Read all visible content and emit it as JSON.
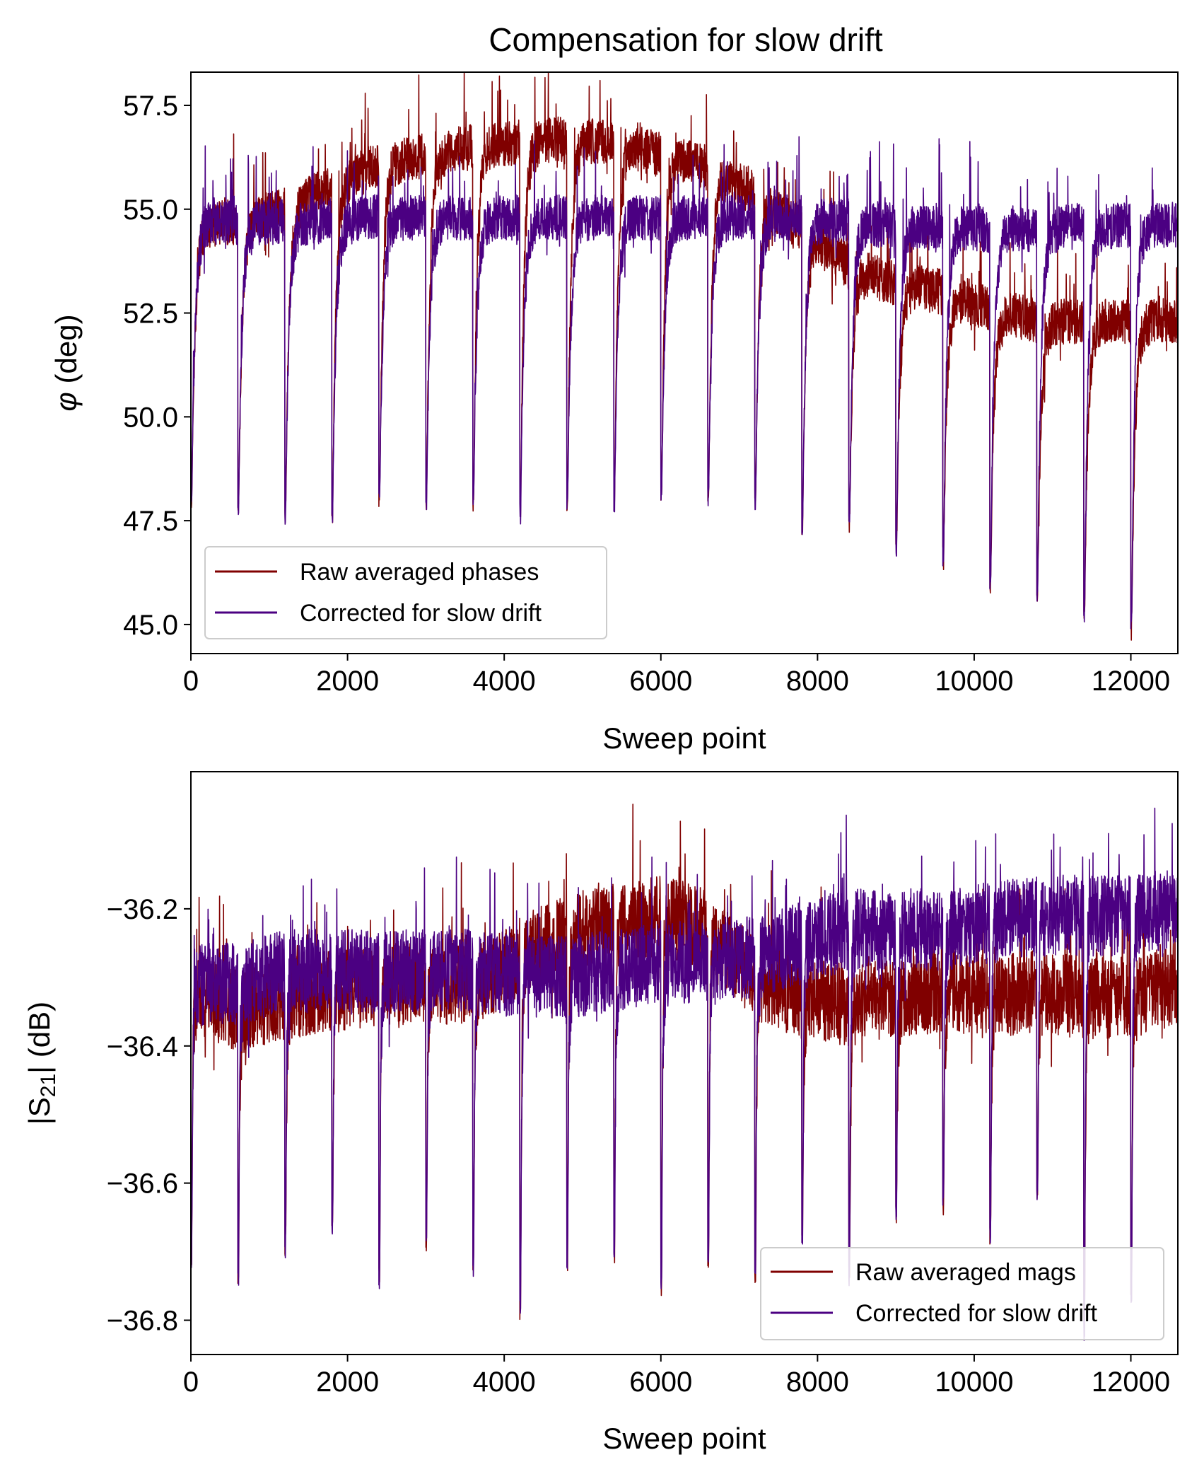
{
  "figure": {
    "title": "Compensation for slow drift"
  },
  "chart_data": [
    {
      "type": "line",
      "title": "Compensation for slow drift",
      "xlabel": "Sweep point",
      "ylabel": "φ (deg)",
      "ylabel_symbol": "φ",
      "ylabel_unit": " (deg)",
      "xlim": [
        0,
        12600
      ],
      "ylim": [
        44.3,
        58.3
      ],
      "xticks": [
        0,
        2000,
        4000,
        6000,
        8000,
        10000,
        12000
      ],
      "xtick_labels": [
        "0",
        "2000",
        "4000",
        "6000",
        "8000",
        "10000",
        "12000"
      ],
      "yticks": [
        45.0,
        47.5,
        50.0,
        52.5,
        55.0,
        57.5
      ],
      "ytick_labels": [
        "45.0",
        "47.5",
        "50.0",
        "52.5",
        "55.0",
        "57.5"
      ],
      "grid": false,
      "legend_position": "lower-left",
      "period": 600,
      "dip_depth": [
        47.8,
        47.8,
        47.7,
        47.7,
        48.0,
        48.0,
        47.9,
        47.7,
        48.0,
        48.0,
        48.1,
        48.1,
        48.0,
        47.4,
        47.5,
        46.9,
        46.6,
        45.9,
        45.8,
        45.3,
        44.9
      ],
      "series": [
        {
          "name": "Raw averaged phases",
          "color": "#800000",
          "plateau_x": [
            0,
            600,
            1200,
            1800,
            2400,
            3000,
            3600,
            4200,
            4800,
            5400,
            6000,
            6600,
            7200,
            7800,
            8400,
            9000,
            9600,
            10200,
            10800,
            11400,
            12000,
            12600
          ],
          "plateau_y": [
            54.6,
            54.7,
            55.0,
            55.5,
            56.1,
            56.3,
            56.5,
            56.6,
            56.7,
            56.6,
            56.3,
            56.0,
            55.4,
            54.5,
            53.6,
            53.2,
            53.0,
            52.6,
            52.3,
            52.3,
            52.3,
            52.3
          ]
        },
        {
          "name": "Corrected for slow drift",
          "color": "#4b0082",
          "plateau_x": [
            0,
            600,
            1200,
            1800,
            2400,
            3000,
            3600,
            4200,
            4800,
            5400,
            6000,
            6600,
            7200,
            7800,
            8400,
            9000,
            9600,
            10200,
            10800,
            11400,
            12000,
            12600
          ],
          "plateau_y": [
            54.7,
            54.7,
            54.7,
            54.7,
            54.8,
            54.8,
            54.8,
            54.8,
            54.8,
            54.8,
            54.8,
            54.8,
            54.8,
            54.8,
            54.7,
            54.6,
            54.6,
            54.5,
            54.5,
            54.6,
            54.6,
            54.6
          ]
        }
      ]
    },
    {
      "type": "line",
      "title": "",
      "xlabel": "Sweep point",
      "ylabel": "|S21| (dB)",
      "ylabel_prefix": "|S",
      "ylabel_sub": "21",
      "ylabel_suffix": "| (dB)",
      "xlim": [
        0,
        12600
      ],
      "ylim": [
        -36.85,
        -36.0
      ],
      "xticks": [
        0,
        2000,
        4000,
        6000,
        8000,
        10000,
        12000
      ],
      "xtick_labels": [
        "0",
        "2000",
        "4000",
        "6000",
        "8000",
        "10000",
        "12000"
      ],
      "yticks": [
        -36.2,
        -36.4,
        -36.6,
        -36.8
      ],
      "ytick_labels": [
        "−36.2",
        "−36.4",
        "−36.6",
        "−36.8"
      ],
      "grid": false,
      "legend_position": "lower-right",
      "period": 600,
      "dip_depth": [
        -36.71,
        -36.73,
        -36.69,
        -36.66,
        -36.74,
        -36.68,
        -36.72,
        -36.78,
        -36.71,
        -36.7,
        -36.75,
        -36.71,
        -36.73,
        -36.68,
        -36.73,
        -36.64,
        -36.63,
        -36.67,
        -36.62,
        -36.81,
        -36.76
      ],
      "series": [
        {
          "name": "Raw averaged mags",
          "color": "#800000",
          "plateau_x": [
            0,
            600,
            1200,
            1800,
            2400,
            3000,
            3600,
            4200,
            4800,
            5400,
            6000,
            6600,
            7200,
            7800,
            8400,
            9000,
            9600,
            10200,
            10800,
            11400,
            12000,
            12600
          ],
          "plateau_y": [
            -36.32,
            -36.35,
            -36.33,
            -36.32,
            -36.31,
            -36.31,
            -36.31,
            -36.27,
            -36.24,
            -36.22,
            -36.21,
            -36.23,
            -36.3,
            -36.33,
            -36.34,
            -36.33,
            -36.32,
            -36.33,
            -36.32,
            -36.33,
            -36.33,
            -36.31
          ]
        },
        {
          "name": "Corrected for slow drift",
          "color": "#4b0082",
          "plateau_x": [
            0,
            600,
            1200,
            1800,
            2400,
            3000,
            3600,
            4200,
            4800,
            5400,
            6000,
            6600,
            7200,
            7800,
            8400,
            9000,
            9600,
            10200,
            10800,
            11400,
            12000,
            12600
          ],
          "plateau_y": [
            -36.31,
            -36.31,
            -36.29,
            -36.29,
            -36.29,
            -36.29,
            -36.29,
            -36.3,
            -36.3,
            -36.29,
            -36.28,
            -36.28,
            -36.27,
            -36.25,
            -36.23,
            -36.23,
            -36.23,
            -36.22,
            -36.21,
            -36.21,
            -36.21,
            -36.2
          ]
        }
      ]
    }
  ]
}
